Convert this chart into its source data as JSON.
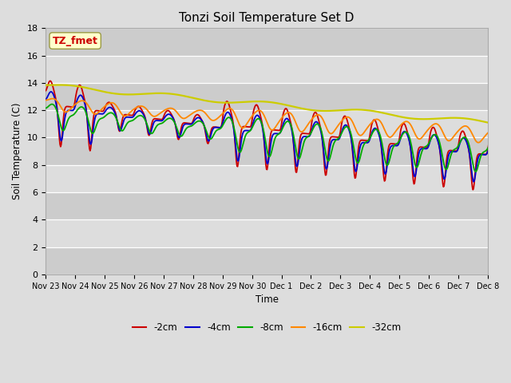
{
  "title": "Tonzi Soil Temperature Set D",
  "xlabel": "Time",
  "ylabel": "Soil Temperature (C)",
  "ylim": [
    0,
    18
  ],
  "yticks": [
    0,
    2,
    4,
    6,
    8,
    10,
    12,
    14,
    16,
    18
  ],
  "x_labels": [
    "Nov 23",
    "Nov 24",
    "Nov 25",
    "Nov 26",
    "Nov 27",
    "Nov 28",
    "Nov 29",
    "Nov 30",
    "Dec 1",
    "Dec 2",
    "Dec 3",
    "Dec 4",
    "Dec 5",
    "Dec 6",
    "Dec 7",
    "Dec 8"
  ],
  "series_colors": {
    "-2cm": "#cc0000",
    "-4cm": "#0000cc",
    "-8cm": "#00aa00",
    "-16cm": "#ff8800",
    "-32cm": "#cccc00"
  },
  "annotation_text": "TZ_fmet",
  "annotation_color": "#cc0000",
  "annotation_bg": "#ffffcc",
  "title_fontsize": 11
}
